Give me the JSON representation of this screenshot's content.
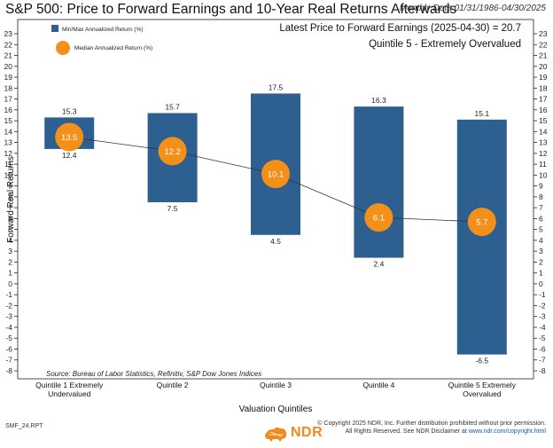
{
  "header": {
    "title": "S&P 500: Price to Forward Earnings and 10-Year Real Returns Afterwards",
    "subtitle": "Monthly Data 01/31/1986-04/30/2025",
    "info_line1": "Latest Price to Forward Earnings (2025-04-30) = 20.7",
    "info_line2": "Quintile 5 - Extremely Overvalued"
  },
  "legend": {
    "minmax_label": "Min/Max Annualized Return (%)",
    "median_label": "Median Annualized Return (%)"
  },
  "source": "Source:   Bureau of Labor Statistics, Refinitiv, S&P Dow Jones Indices",
  "footer": {
    "report_id": "SMF_24.RPT",
    "copyright_line1": "© Copyright 2025 NDR, Inc. Further distribution prohibited without prior permission.",
    "copyright_line2_prefix": "All Rights Reserved. See NDR Disclaimer at ",
    "copyright_link": "www.ndr.com/copyright.html",
    "logo_text": "NDR"
  },
  "colors": {
    "bar": "#2e5f91",
    "median": "#f39019",
    "line": "#333333",
    "logo": "#f08a1e"
  },
  "chart_data": {
    "type": "bar",
    "subtype": "floating-range-with-median",
    "categories": [
      [
        "Quintile 1 Extremely",
        "Undervalued"
      ],
      [
        "Quintile 2"
      ],
      [
        "Quintile 3"
      ],
      [
        "Quintile 4"
      ],
      [
        "Quintile 5 Extremely",
        "Overvalued"
      ]
    ],
    "min": [
      12.4,
      7.5,
      4.5,
      2.4,
      -6.5
    ],
    "max": [
      15.3,
      15.7,
      17.5,
      16.3,
      15.1
    ],
    "median": [
      13.5,
      12.2,
      10.1,
      6.1,
      5.7
    ],
    "xlabel": "Valuation Quintiles",
    "ylabel": "Forward Real Returns",
    "ylim": [
      -8,
      23
    ],
    "yticks": [
      -8,
      -7,
      -6,
      -5,
      -4,
      -3,
      -2,
      -1,
      0,
      1,
      2,
      3,
      4,
      5,
      6,
      7,
      8,
      9,
      10,
      11,
      12,
      13,
      14,
      15,
      16,
      17,
      18,
      19,
      20,
      21,
      22,
      23
    ],
    "grid": false,
    "legend_position": "top-left"
  }
}
